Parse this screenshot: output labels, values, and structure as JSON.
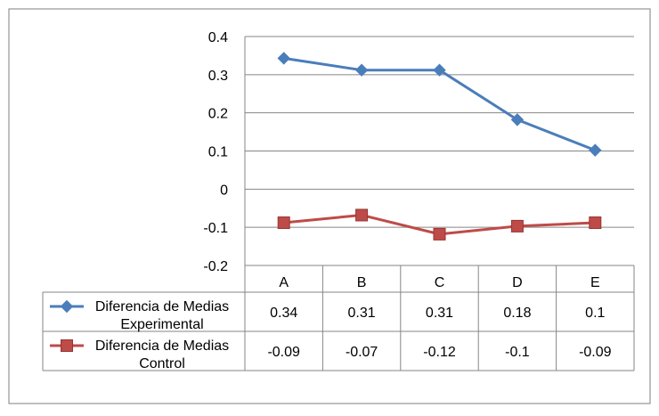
{
  "chart_data": {
    "type": "line",
    "title": "",
    "xlabel": "",
    "ylabel": "",
    "categories": [
      "A",
      "B",
      "C",
      "D",
      "E"
    ],
    "ylim": [
      -0.2,
      0.4
    ],
    "yticks": [
      0.4,
      0.3,
      0.2,
      0.1,
      0,
      -0.1,
      -0.2
    ],
    "ytick_labels": [
      "0.4",
      "0.3",
      "0.2",
      "0.1",
      "0",
      "-0.1",
      "-0.2"
    ],
    "grid": true,
    "legend": "data-table",
    "series": [
      {
        "name": "Diferencia de Medias Experimental",
        "name_lines": [
          "Diferencia de Medias",
          "Experimental"
        ],
        "values": [
          0.343,
          0.312,
          0.312,
          0.182,
          0.102
        ],
        "table_values": [
          "0.34",
          "0.31",
          "0.31",
          "0.18",
          "0.1"
        ],
        "color": "#4a7ebb",
        "marker": "diamond"
      },
      {
        "name": "Diferencia de Medias Control",
        "name_lines": [
          "Diferencia de Medias",
          "Control"
        ],
        "values": [
          -0.088,
          -0.068,
          -0.118,
          -0.097,
          -0.088
        ],
        "table_values": [
          "-0.09",
          "-0.07",
          "-0.12",
          "-0.1",
          "-0.09"
        ],
        "color": "#be4b48",
        "marker": "square"
      }
    ]
  }
}
